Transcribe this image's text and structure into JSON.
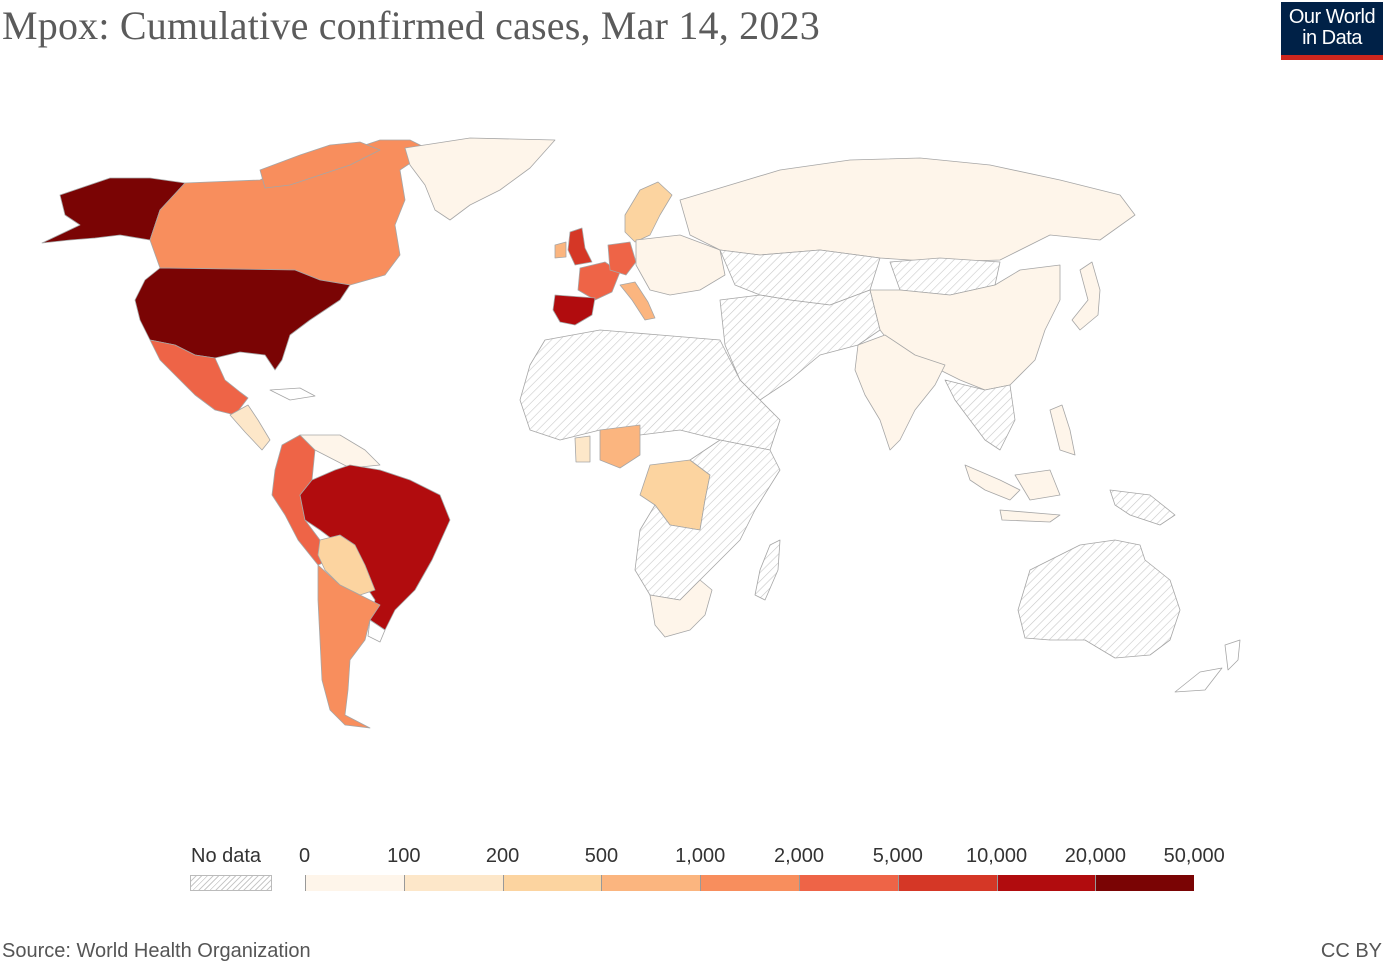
{
  "title": "Mpox: Cumulative confirmed cases, Mar 14, 2023",
  "logo": {
    "line1": "Our World",
    "line2": "in Data"
  },
  "legend": {
    "no_data_label": "No data",
    "ticks": [
      "0",
      "100",
      "200",
      "500",
      "1,000",
      "2,000",
      "5,000",
      "10,000",
      "20,000",
      "50,000"
    ],
    "colors": [
      "#fef5ea",
      "#fde7c9",
      "#fcd4a0",
      "#fbb57f",
      "#f88e5d",
      "#ee6447",
      "#d53726",
      "#b10c0e",
      "#7a0404"
    ]
  },
  "source": "Source: World Health Organization",
  "license": "CC BY",
  "colors": {
    "nodata": "#ffffff",
    "border": "#a6a6a6",
    "logo_bg": "#002147",
    "logo_bar": "#ce261e"
  }
}
